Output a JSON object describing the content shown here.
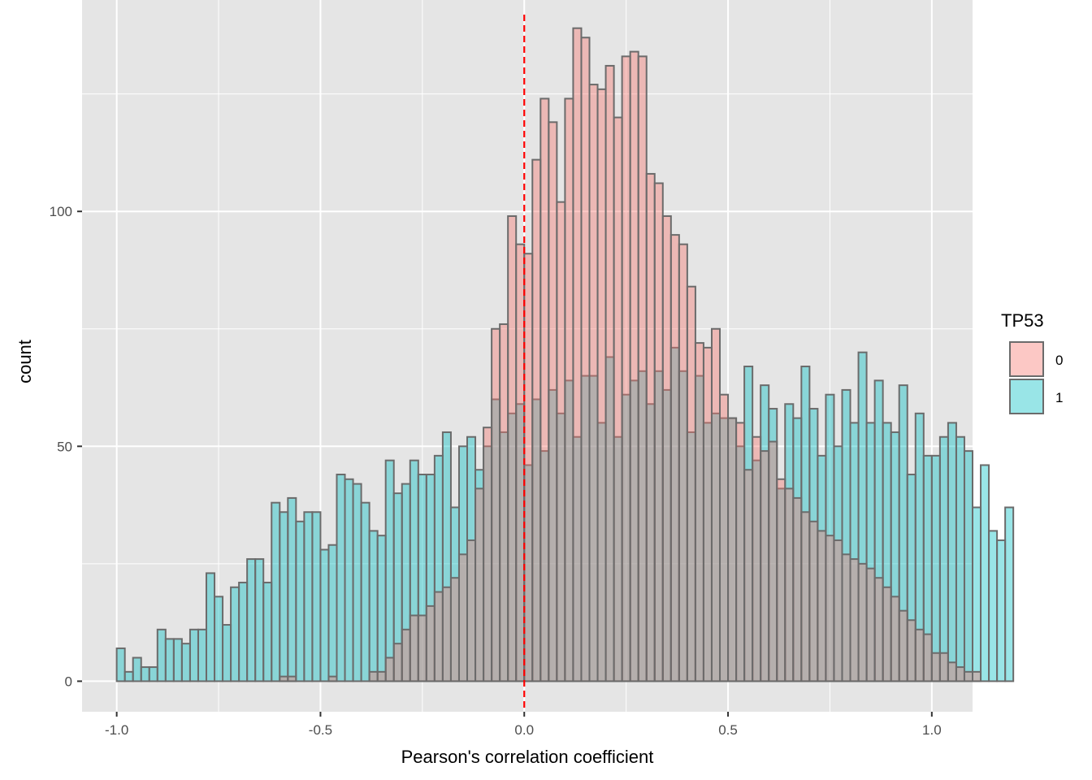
{
  "chart_data": {
    "type": "histogram",
    "xlabel": "Pearson's correlation coefficient",
    "ylabel": "count",
    "xlim": [
      -1.085,
      1.1
    ],
    "ylim": [
      -6.5,
      145
    ],
    "x_ticks": [
      -1.0,
      -0.5,
      0.0,
      0.5,
      1.0
    ],
    "x_tick_labels": [
      "-1.0",
      "-0.5",
      "0.0",
      "0.5",
      "1.0"
    ],
    "y_ticks": [
      0,
      50,
      100
    ],
    "y_tick_labels": [
      "0",
      "50",
      "100"
    ],
    "bin_width": 0.02,
    "bin_start": -1.0,
    "reference_line": {
      "x": 0.0,
      "color": "#ff0000",
      "style": "dashed"
    },
    "grid": true,
    "legend": {
      "title": "TP53",
      "position": "right"
    },
    "colors": {
      "panel_background": "#e5e5e5",
      "grid": "#ffffff",
      "bar_outline": "#6b6b6b",
      "series_0": "#f8766d",
      "series_1": "#00bfc4",
      "reference_line": "#ff0000"
    },
    "series": [
      {
        "name": "0",
        "values": [
          0,
          0,
          0,
          0,
          0,
          0,
          0,
          0,
          0,
          0,
          0,
          0,
          0,
          0,
          0,
          0,
          0,
          0,
          0,
          0,
          1,
          1,
          0,
          0,
          0,
          0,
          1,
          0,
          0,
          0,
          0,
          2,
          2,
          5,
          8,
          11,
          14,
          14,
          16,
          19,
          20,
          22,
          27,
          30,
          41,
          54,
          75,
          76,
          99,
          93,
          91,
          111,
          124,
          119,
          102,
          124,
          139,
          137,
          127,
          126,
          131,
          120,
          133,
          134,
          133,
          108,
          106,
          99,
          95,
          93,
          84,
          72,
          71,
          75,
          61,
          56,
          55,
          45,
          52,
          49,
          51,
          43,
          41,
          39,
          36,
          34,
          32,
          31,
          30,
          27,
          26,
          25,
          24,
          22,
          20,
          18,
          15,
          13,
          11,
          10,
          6,
          6,
          4,
          3,
          2,
          2,
          0,
          0,
          0,
          0
        ]
      },
      {
        "name": "1",
        "values": [
          7,
          2,
          5,
          3,
          3,
          11,
          9,
          9,
          8,
          11,
          11,
          23,
          18,
          12,
          20,
          21,
          26,
          26,
          21,
          38,
          36,
          39,
          34,
          36,
          36,
          28,
          29,
          44,
          43,
          42,
          38,
          32,
          31,
          47,
          40,
          42,
          47,
          44,
          44,
          48,
          53,
          37,
          50,
          52,
          45,
          50,
          60,
          53,
          57,
          59,
          46,
          60,
          49,
          62,
          57,
          64,
          52,
          65,
          65,
          55,
          69,
          52,
          61,
          64,
          66,
          59,
          66,
          62,
          71,
          66,
          53,
          65,
          55,
          57,
          56,
          56,
          50,
          67,
          47,
          63,
          58,
          41,
          59,
          56,
          67,
          58,
          48,
          61,
          50,
          62,
          55,
          70,
          55,
          64,
          55,
          53,
          63,
          44,
          57,
          48,
          48,
          52,
          55,
          52,
          49,
          37,
          46,
          32,
          30,
          37,
          0,
          0,
          0,
          0
        ]
      }
    ]
  }
}
